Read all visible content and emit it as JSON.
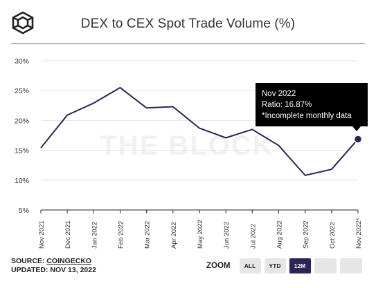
{
  "header": {
    "title": "DEX to CEX Spot Trade Volume (%)",
    "logo_icon": "the-block-cube-logo"
  },
  "watermark": "THE BLOCK",
  "chart_data": {
    "type": "line",
    "title": "DEX to CEX Spot Trade Volume (%)",
    "x": [
      "Nov 2021",
      "Dec 2021",
      "Jan 2022",
      "Feb 2022",
      "Mar 2022",
      "Apr 2022",
      "May 2022",
      "Jun 2022",
      "Jul 2022",
      "Aug 2022",
      "Sep 2022",
      "Oct 2022",
      "Nov 2022*"
    ],
    "series": [
      {
        "values": [
          15.4,
          20.9,
          22.9,
          25.5,
          22.1,
          22.3,
          18.7,
          17.1,
          18.5,
          15.8,
          10.8,
          11.8,
          16.87
        ],
        "color": "#2b2459"
      }
    ],
    "yticks": [
      "30%",
      "25%",
      "20%",
      "15%",
      "10%",
      "5%"
    ],
    "ylim": [
      5,
      30
    ],
    "grid": "horizontal",
    "highlight_index": 12
  },
  "tooltip": {
    "date": "Nov 2022",
    "ratio": "Ratio: 16.87%",
    "note": "*Incomplete monthly data"
  },
  "footer": {
    "source_prefix": "SOURCE: ",
    "source_link": "COINGECKO",
    "updated": "UPDATED: NOV 13, 2022"
  },
  "zoom": {
    "label": "ZOOM",
    "buttons": [
      "ALL",
      "YTD",
      "12M",
      "",
      ""
    ],
    "active": "12M"
  },
  "colors": {
    "accent": "#7b3ec7",
    "line": "#2b2459",
    "grid": "#e6e6e6",
    "watermark": "#f1f1f1"
  }
}
